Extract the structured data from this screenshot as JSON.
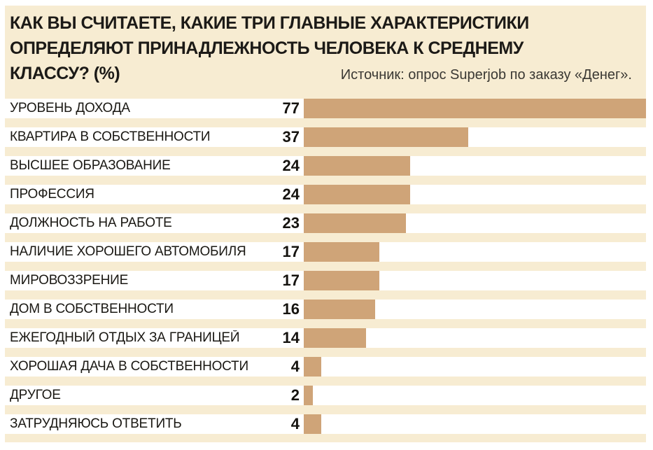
{
  "header": {
    "title_line1": "КАК ВЫ СЧИТАЕТЕ, КАКИЕ ТРИ ГЛАВНЫЕ ХАРАКТЕРИСТИКИ",
    "title_line2": "ОПРЕДЕЛЯЮТ ПРИНАДЛЕЖНОСТЬ ЧЕЛОВЕКА К СРЕДНЕМУ",
    "title_line3": "КЛАССУ? (%)",
    "source": "Источник: опрос Superjob по заказу «Денег»."
  },
  "colors": {
    "panel_bg": "#F7ECD2",
    "row_bg": "#FFFFFF",
    "bar": "#CFA478",
    "title_text": "#1C1A17",
    "label_text": "#1A1813"
  },
  "chart_data": {
    "type": "bar",
    "orientation": "horizontal",
    "title": "КАК ВЫ СЧИТАЕТЕ, КАКИЕ ТРИ ГЛАВНЫЕ ХАРАКТЕРИСТИКИ ОПРЕДЕЛЯЮТ ПРИНАДЛЕЖНОСТЬ ЧЕЛОВЕКА К СРЕДНЕМУ КЛАССУ? (%)",
    "source": "Источник: опрос Superjob по заказу «Денег».",
    "unit": "%",
    "xlim": [
      0,
      77
    ],
    "grid": false,
    "legend": false,
    "categories": [
      "УРОВЕНЬ ДОХОДА",
      "КВАРТИРА В СОБСТВЕННОСТИ",
      "ВЫСШЕЕ ОБРАЗОВАНИЕ",
      "ПРОФЕССИЯ",
      "ДОЛЖНОСТЬ НА РАБОТЕ",
      "НАЛИЧИЕ ХОРОШЕГО АВТОМОБИЛЯ",
      "МИРОВОЗЗРЕНИЕ",
      "ДОМ В СОБСТВЕННОСТИ",
      "ЕЖЕГОДНЫЙ ОТДЫХ ЗА ГРАНИЦЕЙ",
      "ХОРОШАЯ ДАЧА В СОБСТВЕННОСТИ",
      "ДРУГОЕ",
      "ЗАТРУДНЯЮСЬ ОТВЕТИТЬ"
    ],
    "values": [
      77,
      37,
      24,
      24,
      23,
      17,
      17,
      16,
      14,
      4,
      2,
      4
    ]
  }
}
